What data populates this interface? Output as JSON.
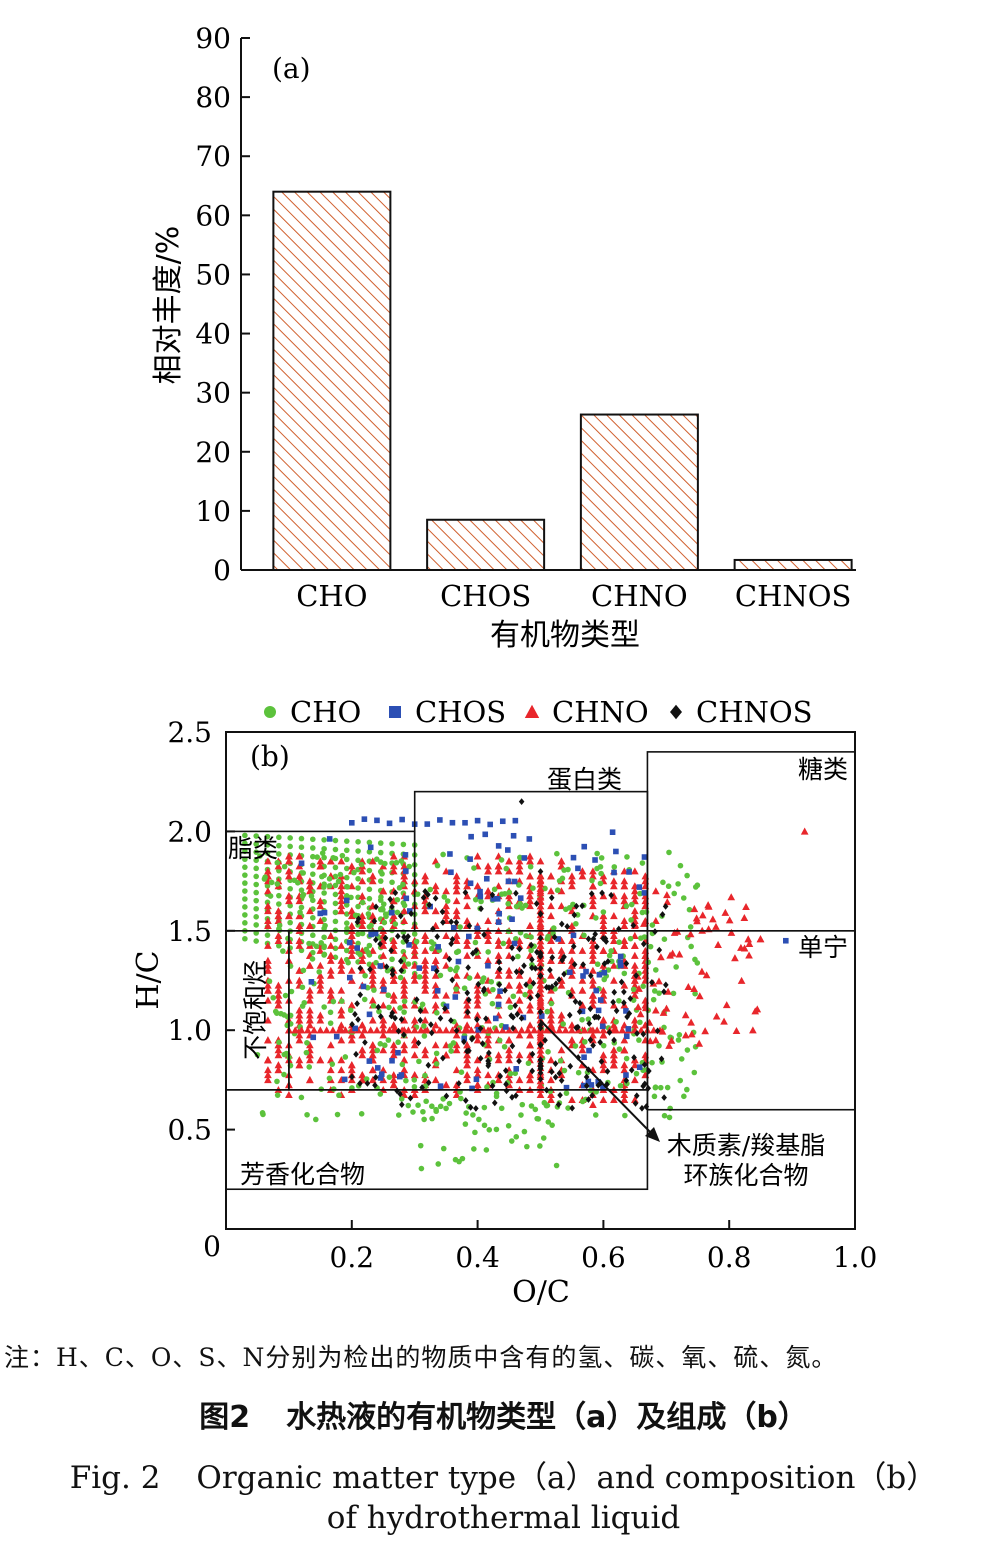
{
  "chart_data": [
    {
      "panel": "(a)",
      "type": "bar",
      "categories": [
        "CHO",
        "CHOS",
        "CHNO",
        "CHNOS"
      ],
      "values": [
        64,
        8.5,
        26.3,
        1.7
      ],
      "xlabel": "有机物类型",
      "ylabel": "相对丰度/%",
      "ylim": [
        0,
        90
      ],
      "yticks": [
        0,
        10,
        20,
        30,
        40,
        50,
        60,
        70,
        80,
        90
      ],
      "bar_fill": "hatched",
      "bar_color": "#c0582b"
    },
    {
      "panel": "(b)",
      "type": "scatter",
      "xlabel": "O/C",
      "ylabel": "H/C",
      "xlim": [
        0,
        1.0
      ],
      "ylim": [
        0,
        2.5
      ],
      "xticks": [
        "0.2",
        "0.4",
        "0.6",
        "0.8",
        "1.0"
      ],
      "yticks": [
        "0.5",
        "1.0",
        "1.5",
        "2.0",
        "2.5"
      ],
      "origin_label": "0",
      "legend_position": "top",
      "legend": [
        {
          "name": "CHO",
          "marker": "circle",
          "color": "#5cc23c"
        },
        {
          "name": "CHOS",
          "marker": "square",
          "color": "#2c4fb4"
        },
        {
          "name": "CHNO",
          "marker": "triangle",
          "color": "#e8262b"
        },
        {
          "name": "CHNOS",
          "marker": "diamond",
          "color": "#111111"
        }
      ],
      "regions": [
        {
          "label": "脂类",
          "x": [
            0,
            0.3
          ],
          "y": [
            1.5,
            2.0
          ]
        },
        {
          "label": "蛋白类",
          "x": [
            0.3,
            0.67
          ],
          "y": [
            1.5,
            2.2
          ]
        },
        {
          "label": "糖类",
          "x": [
            0.67,
            1.0
          ],
          "y": [
            1.5,
            2.4
          ]
        },
        {
          "label": "单宁",
          "x": [
            0.67,
            1.0
          ],
          "y": [
            0.6,
            1.5
          ]
        },
        {
          "label": "不饱和烃",
          "x": [
            0,
            0.1
          ],
          "y": [
            0.7,
            1.5
          ]
        },
        {
          "label": "木质素/羧基脂环族化合物",
          "label_lines": [
            "木质素/羧基脂",
            "环族化合物"
          ],
          "x": [
            0.1,
            0.67
          ],
          "y": [
            0.7,
            1.5
          ]
        },
        {
          "label": "芳香化合物",
          "x": [
            0,
            0.67
          ],
          "y": [
            0.2,
            0.7
          ]
        }
      ]
    }
  ],
  "figure": {
    "note": "注：H、C、O、S、N分别为检出的物质中含有的氢、碳、氧、硫、氮。",
    "caption_cn_num": "图2",
    "caption_cn": "水热液的有机物类型（a）及组成（b）",
    "caption_en_num": "Fig. 2",
    "caption_en_line1": "Organic matter type（a）and composition（b）",
    "caption_en_line2": "of hydrothermal liquid"
  }
}
